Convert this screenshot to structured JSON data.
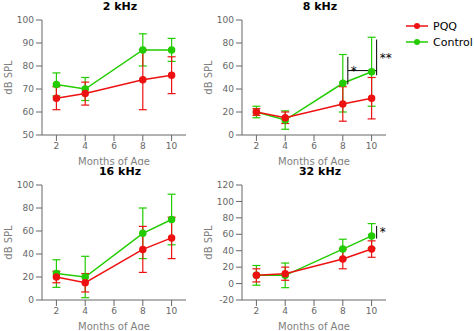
{
  "chart_data": [
    {
      "type": "line",
      "title": "2 kHz",
      "x_label": "Months of Age",
      "y_label": "dB SPL",
      "x": [
        2,
        4,
        8,
        10
      ],
      "xlim": [
        1,
        11
      ],
      "xticks": [
        2,
        4,
        6,
        8,
        10
      ],
      "ylim": [
        50,
        100
      ],
      "yticks": [
        50,
        60,
        70,
        80,
        90,
        100
      ],
      "grid": false,
      "marker": "circle",
      "series": [
        {
          "name": "PQQ",
          "color": "#ee1111",
          "values": [
            66,
            68,
            74,
            76
          ],
          "errors": [
            5,
            5,
            13,
            8
          ]
        },
        {
          "name": "Control",
          "color": "#22cc00",
          "values": [
            72,
            70,
            87,
            87
          ],
          "errors": [
            5,
            5,
            7,
            5
          ]
        }
      ]
    },
    {
      "type": "line",
      "title": "8 kHz",
      "x_label": "Months of Age",
      "y_label": "dB SPL",
      "x": [
        2,
        4,
        8,
        10
      ],
      "xlim": [
        1,
        11
      ],
      "xticks": [
        2,
        4,
        6,
        8,
        10
      ],
      "ylim": [
        0,
        100
      ],
      "yticks": [
        0,
        20,
        40,
        60,
        80,
        100
      ],
      "grid": false,
      "marker": "circle",
      "legend": "right",
      "series": [
        {
          "name": "PQQ",
          "color": "#ee1111",
          "values": [
            20,
            15,
            27,
            32
          ],
          "errors": [
            3,
            5,
            15,
            18
          ]
        },
        {
          "name": "Control",
          "color": "#22cc00",
          "values": [
            20,
            13,
            45,
            55
          ],
          "errors": [
            5,
            8,
            25,
            30
          ]
        }
      ],
      "annotations": [
        {
          "text": "*",
          "x": 8
        },
        {
          "text": "**",
          "x": 10
        }
      ]
    },
    {
      "type": "line",
      "title": "16 kHz",
      "x_label": "Months of Age",
      "y_label": "dB SPL",
      "x": [
        2,
        4,
        8,
        10
      ],
      "xlim": [
        1,
        11
      ],
      "xticks": [
        2,
        4,
        6,
        8,
        10
      ],
      "ylim": [
        0,
        100
      ],
      "yticks": [
        0,
        20,
        40,
        60,
        80,
        100
      ],
      "grid": false,
      "marker": "circle",
      "series": [
        {
          "name": "PQQ",
          "color": "#ee1111",
          "values": [
            20,
            15,
            44,
            54
          ],
          "errors": [
            5,
            8,
            20,
            18
          ]
        },
        {
          "name": "Control",
          "color": "#22cc00",
          "values": [
            23,
            20,
            58,
            70
          ],
          "errors": [
            12,
            18,
            22,
            22
          ]
        }
      ]
    },
    {
      "type": "line",
      "title": "32 kHz",
      "x_label": "Months of Age",
      "y_label": "dB SPL",
      "x": [
        2,
        4,
        8,
        10
      ],
      "xlim": [
        1,
        11
      ],
      "xticks": [
        2,
        4,
        6,
        8,
        10
      ],
      "ylim": [
        -20,
        120
      ],
      "yticks": [
        -20,
        0,
        20,
        40,
        60,
        80,
        100,
        120
      ],
      "grid": false,
      "marker": "circle",
      "series": [
        {
          "name": "PQQ",
          "color": "#ee1111",
          "values": [
            10,
            12,
            30,
            42
          ],
          "errors": [
            8,
            8,
            12,
            10
          ]
        },
        {
          "name": "Control",
          "color": "#22cc00",
          "values": [
            10,
            10,
            42,
            58
          ],
          "errors": [
            12,
            15,
            12,
            15
          ]
        }
      ],
      "annotations": [
        {
          "text": "*",
          "x": 10
        }
      ]
    }
  ]
}
